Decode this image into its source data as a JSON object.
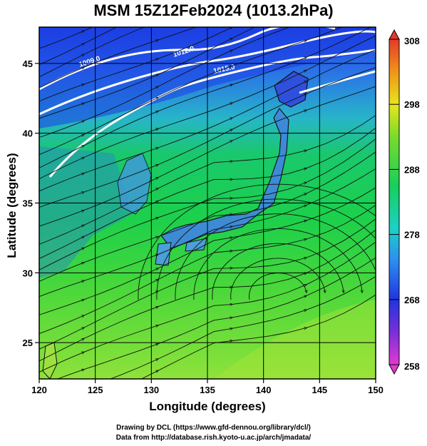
{
  "title": "MSM 15Z12Feb2024 (1013.2hPa)",
  "x_axis": {
    "label": "Longitude (degrees)",
    "range": [
      120,
      150
    ],
    "ticks": [
      "120",
      "125",
      "130",
      "135",
      "140",
      "145",
      "150"
    ]
  },
  "y_axis": {
    "label": "Latitude  (degrees)",
    "range": [
      22.4,
      47.6
    ],
    "ticks": [
      "25",
      "30",
      "35",
      "40",
      "45"
    ]
  },
  "colorbar": {
    "range": [
      258,
      308
    ],
    "ticks": [
      "258",
      "268",
      "278",
      "288",
      "298",
      "308"
    ]
  },
  "isobar_labels": [
    "1009.0",
    "1012.0",
    "1015.0"
  ],
  "credits": {
    "line1": "Drawing by DCL (https://www.gfd-dennou.org/library/dcl/)",
    "line2": "Data from http://database.rish.kyoto-u.ac.jp/arch/jmadata/"
  }
}
